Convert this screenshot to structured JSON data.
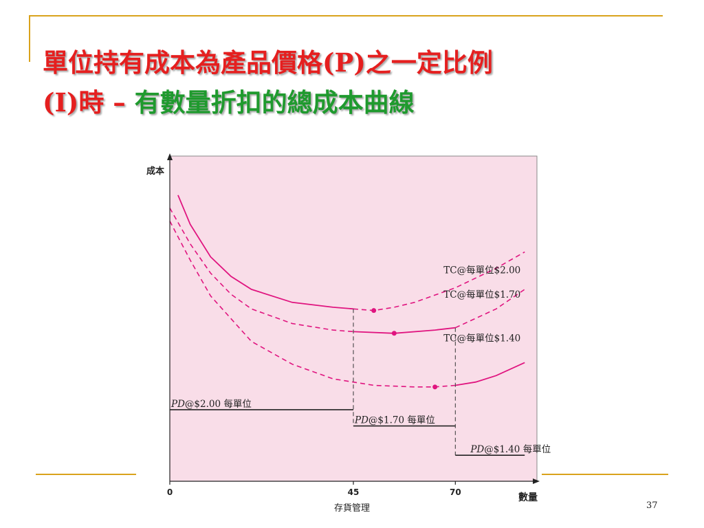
{
  "slide": {
    "title_part1": "單位持有成本為產品價格(P)之一定比例",
    "title_part2": "(I)時 – ",
    "title_part3": "有數量折扣的總成本曲線",
    "footer": "存貨管理",
    "page": "37"
  },
  "colors": {
    "accent": "#d9a21b",
    "title_red": "#e51f1f",
    "title_green": "#1f9a2e",
    "plot_bg": "#f9dde8",
    "curve": "#e0147f"
  },
  "chart_data": {
    "type": "line",
    "ylabel": "成本",
    "xlabel": "數量",
    "x_ticks": [
      "0",
      "45",
      "70"
    ],
    "xlim": [
      0,
      90
    ],
    "ylim": [
      0,
      100
    ],
    "series": [
      {
        "name": "TC@每單位$2.00",
        "valid_range": [
          0,
          45
        ],
        "points": [
          [
            2,
            88
          ],
          [
            5,
            79
          ],
          [
            10,
            69
          ],
          [
            15,
            63
          ],
          [
            20,
            59
          ],
          [
            30,
            55
          ],
          [
            40,
            53.5
          ],
          [
            45,
            53
          ],
          [
            50,
            52.5
          ],
          [
            55,
            53.5
          ],
          [
            60,
            55
          ],
          [
            70,
            59.5
          ],
          [
            80,
            65.5
          ],
          [
            87,
            70.5
          ]
        ],
        "optimum": [
          50,
          52.5
        ]
      },
      {
        "name": "TC@每單位$1.70",
        "valid_range": [
          45,
          70
        ],
        "points": [
          [
            0,
            84
          ],
          [
            5,
            73
          ],
          [
            10,
            64
          ],
          [
            15,
            57.5
          ],
          [
            20,
            53
          ],
          [
            30,
            48.5
          ],
          [
            40,
            46.5
          ],
          [
            45,
            46
          ],
          [
            55,
            45.5
          ],
          [
            65,
            46.5
          ],
          [
            70,
            47.2
          ],
          [
            80,
            53
          ],
          [
            87,
            59
          ]
        ],
        "optimum": [
          55,
          45.5
        ]
      },
      {
        "name": "TC@每單位$1.40",
        "valid_range": [
          70,
          90
        ],
        "points": [
          [
            0,
            80
          ],
          [
            5,
            68
          ],
          [
            10,
            57
          ],
          [
            20,
            43
          ],
          [
            30,
            36
          ],
          [
            40,
            31.5
          ],
          [
            50,
            29.5
          ],
          [
            60,
            29
          ],
          [
            65,
            29
          ],
          [
            70,
            29.5
          ],
          [
            75,
            30.5
          ],
          [
            80,
            32.5
          ],
          [
            87,
            36.5
          ]
        ],
        "optimum": [
          65,
          29
        ]
      }
    ],
    "pd_steps": [
      {
        "label_italic": "PD",
        "label_rest": "@$2.00 每單位",
        "x_range": [
          0,
          45
        ],
        "value": 22
      },
      {
        "label_italic": "PD",
        "label_rest": "@$1.70 每單位",
        "x_range": [
          45,
          70
        ],
        "value": 17
      },
      {
        "label_italic": "PD",
        "label_rest": "@$1.40 每單位",
        "x_range": [
          70,
          87
        ],
        "value": 8
      }
    ]
  }
}
